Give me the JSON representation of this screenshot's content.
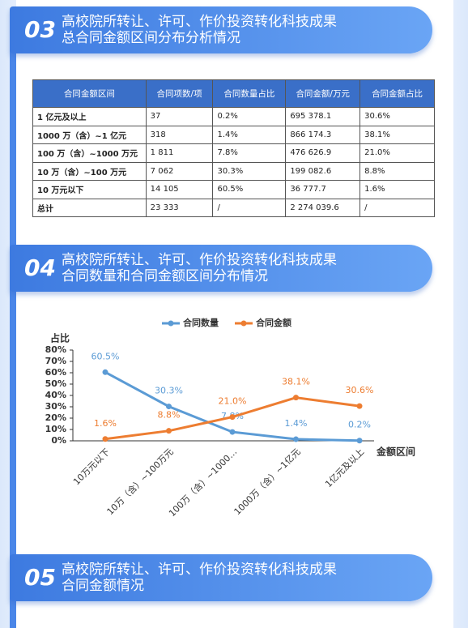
{
  "sections": [
    {
      "number": "03",
      "title_lines": [
        "高校院所转让、许可、作价投资转化科技成果",
        "总合同金额区间分布分析情况"
      ]
    },
    {
      "number": "04",
      "title_lines": [
        "高校院所转让、许可、作价投资转化科技成果",
        "合同数量和合同金额区间分布情况"
      ]
    },
    {
      "number": "05",
      "title_lines": [
        "高校院所转让、许可、作价投资转化科技成果",
        "合同金额情况"
      ]
    }
  ],
  "table": {
    "header": [
      "合同金额区间",
      "合同项数/项",
      "合同数量占比",
      "合同金额/万元",
      "合同金额占比"
    ],
    "rows": [
      [
        "1 亿元及以上",
        "37",
        "0.2%",
        "695 378.1",
        "30.6%"
      ],
      [
        "1000 万（含）~1 亿元",
        "318",
        "1.4%",
        "866 174.3",
        "38.1%"
      ],
      [
        "100 万（含）~1000 万元",
        "1 811",
        "7.8%",
        "476 626.9",
        "21.0%"
      ],
      [
        "10 万（含）~100 万元",
        "7 062",
        "30.3%",
        "199 082.6",
        "8.8%"
      ],
      [
        "10 万元以下",
        "14 105",
        "60.5%",
        "36 777.7",
        "1.6%"
      ],
      [
        "总计",
        "23 333",
        "/",
        "2 274 039.6",
        "/"
      ]
    ]
  },
  "chart_data": {
    "type": "line",
    "categories": [
      "10万元以下",
      "10万（含）~100万元",
      "100万（含）~1000…",
      "1000万（含）~1亿元",
      "1亿元及以上"
    ],
    "series": [
      {
        "name": "合同数量",
        "color": "#5b9bd5",
        "values": [
          60.5,
          30.3,
          7.8,
          1.4,
          0.2
        ],
        "value_labels": [
          "60.5%",
          "30.3%",
          "7.8%",
          "1.4%",
          "0.2%"
        ]
      },
      {
        "name": "合同金额",
        "color": "#ed7d31",
        "values": [
          1.6,
          8.8,
          21.0,
          38.1,
          30.6
        ],
        "value_labels": [
          "1.6%",
          "8.8%",
          "21.0%",
          "38.1%",
          "30.6%"
        ]
      }
    ],
    "y_label": "占比",
    "x_label": "金额区间",
    "ylim": [
      0,
      80
    ],
    "yticks": [
      {
        "value": 0,
        "label": "0%"
      },
      {
        "value": 10,
        "label": "10%"
      },
      {
        "value": 20,
        "label": "20%"
      },
      {
        "value": 30,
        "label": "30%"
      },
      {
        "value": 40,
        "label": "40%"
      },
      {
        "value": 50,
        "label": "50%"
      },
      {
        "value": 60,
        "label": "60%"
      },
      {
        "value": 70,
        "label": "70%"
      },
      {
        "value": 80,
        "label": "80%"
      }
    ],
    "grid": false,
    "legend_position": "top"
  }
}
